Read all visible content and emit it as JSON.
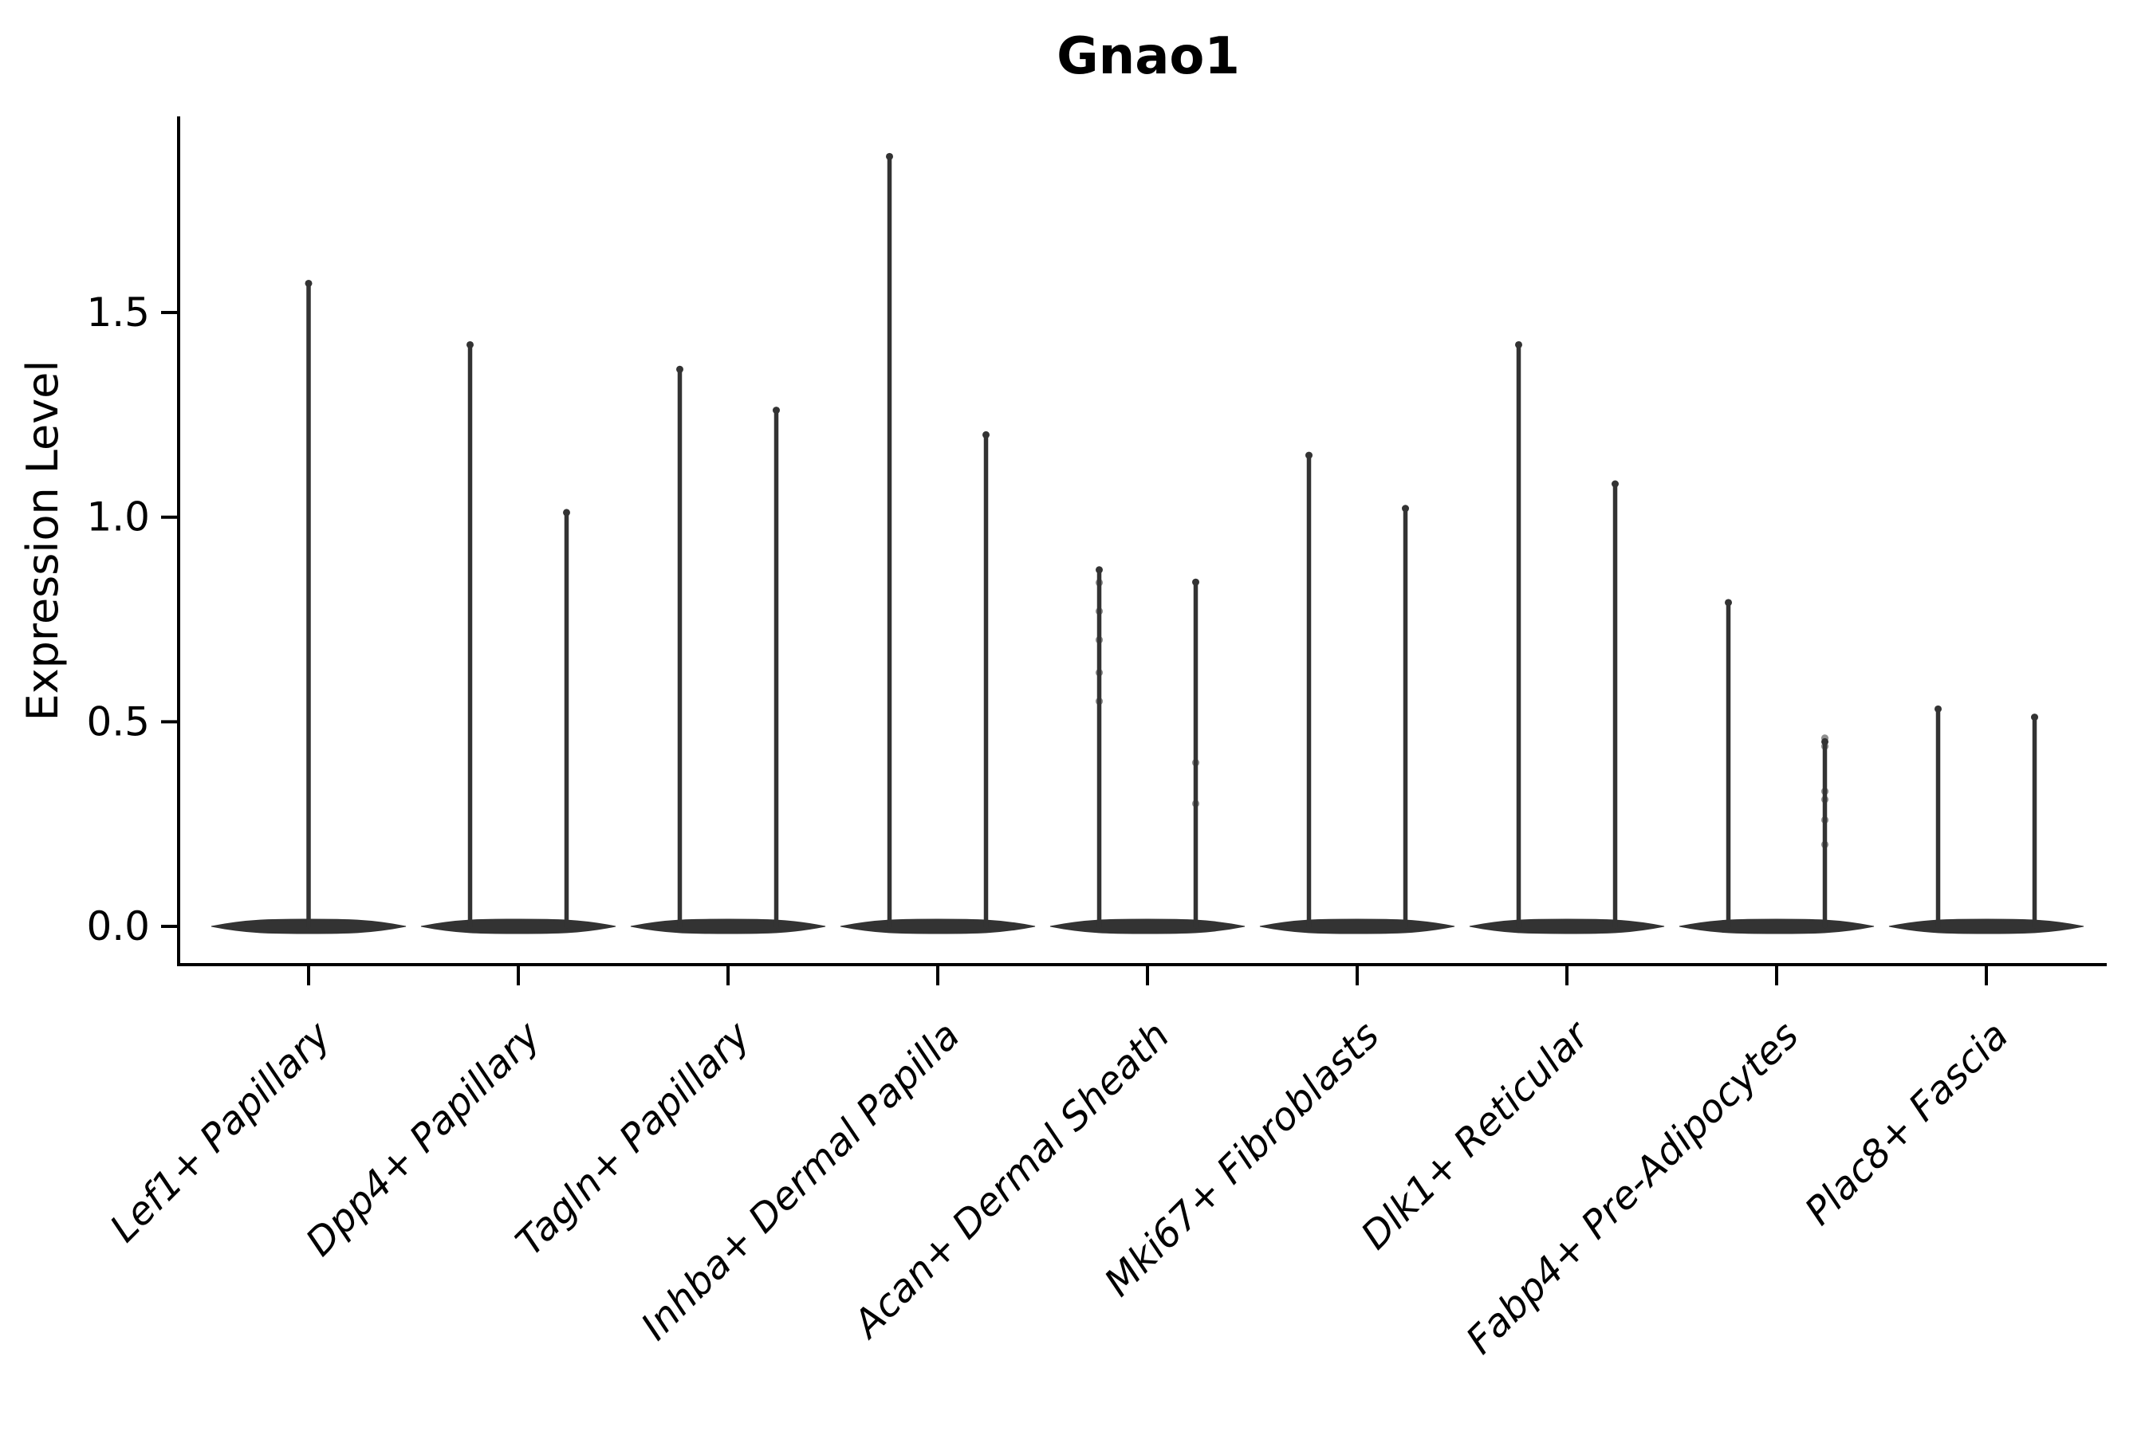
{
  "figure": {
    "title": "Gnao1",
    "background_color": "#ffffff",
    "axis_color": "#000000",
    "violin_color": "#333333",
    "text_color": "#000000"
  },
  "chart_data": {
    "type": "violin",
    "title": "Gnao1",
    "xlabel": "",
    "ylabel": "Expression Level",
    "ylim": [
      -0.095,
      1.985
    ],
    "yticks": [
      0.0,
      0.5,
      1.0,
      1.5
    ],
    "ytick_labels": [
      "0.0",
      "0.5",
      "1.0",
      "1.5"
    ],
    "grid": false,
    "legend": null,
    "baseline_value": 0.0,
    "note": "Each category shows a flat violin at 0 expression with thin spike(s) rising to the maximum expression; first category has one centered violin, the rest have two side-by-side violins.",
    "categories": [
      {
        "label": "Lef1+ Papillary",
        "violin_peaks": [
          1.58
        ],
        "dot_values": [
          []
        ]
      },
      {
        "label": "Dpp4+ Papillary",
        "violin_peaks": [
          1.43,
          1.02
        ],
        "dot_values": [
          [],
          []
        ]
      },
      {
        "label": "Tagln+ Papillary",
        "violin_peaks": [
          1.37,
          1.27
        ],
        "dot_values": [
          [],
          []
        ]
      },
      {
        "label": "Inhba+ Dermal Papilla",
        "violin_peaks": [
          1.89,
          1.21
        ],
        "dot_values": [
          [],
          []
        ]
      },
      {
        "label": "Acan+ Dermal Sheath",
        "violin_peaks": [
          0.88,
          0.85
        ],
        "dot_values": [
          [
            0.84,
            0.77,
            0.7,
            0.62,
            0.55
          ],
          [
            0.4,
            0.3
          ]
        ]
      },
      {
        "label": "Mki67+ Fibroblasts",
        "violin_peaks": [
          1.16,
          1.03
        ],
        "dot_values": [
          [],
          []
        ]
      },
      {
        "label": "Dlk1+ Reticular",
        "violin_peaks": [
          1.43,
          1.09
        ],
        "dot_values": [
          [],
          []
        ]
      },
      {
        "label": "Fabp4+ Pre-Adipocytes",
        "violin_peaks": [
          0.8,
          0.46
        ],
        "dot_values": [
          [],
          [
            0.46,
            0.44,
            0.33,
            0.31,
            0.26,
            0.2
          ]
        ]
      },
      {
        "label": "Plac8+ Fascia",
        "violin_peaks": [
          0.54,
          0.52
        ],
        "dot_values": [
          [],
          []
        ]
      }
    ]
  }
}
